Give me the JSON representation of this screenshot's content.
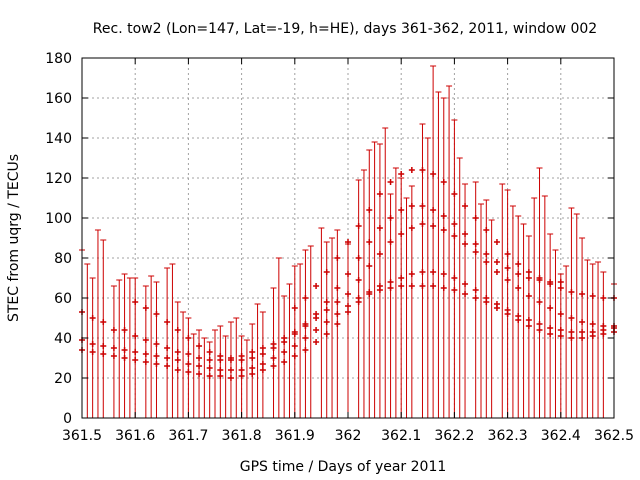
{
  "chart_data": {
    "type": "scatter",
    "title": "Rec. tow2 (Lon=147, Lat=-19, h=HE), days 361-362, 2011, window 002",
    "xlabel": "GPS time / Days of year 2011",
    "ylabel": "STEC from uqrg / TECUs",
    "xlim": [
      361.5,
      362.5
    ],
    "ylim": [
      0,
      180
    ],
    "xticks": [
      "361.5",
      "361.6",
      "361.7",
      "361.8",
      "361.9",
      "362",
      "362.1",
      "362.2",
      "362.3",
      "362.4",
      "362.5"
    ],
    "yticks": [
      "0",
      "20",
      "40",
      "60",
      "80",
      "100",
      "120",
      "140",
      "160",
      "180"
    ],
    "grid": true,
    "error_bars": "vertical bars from 0 to upper value at every x",
    "colors": {
      "series": "#cc0000",
      "grid": "#a0a0a0",
      "axis": "#000000"
    },
    "upper_envelope": [
      [
        361.5,
        84
      ],
      [
        361.51,
        77
      ],
      [
        361.52,
        70
      ],
      [
        361.53,
        94
      ],
      [
        361.54,
        89
      ],
      [
        361.56,
        66
      ],
      [
        361.57,
        69
      ],
      [
        361.58,
        72
      ],
      [
        361.59,
        70
      ],
      [
        361.6,
        70
      ],
      [
        361.62,
        66
      ],
      [
        361.63,
        71
      ],
      [
        361.64,
        68
      ],
      [
        361.66,
        75
      ],
      [
        361.67,
        77
      ],
      [
        361.68,
        58
      ],
      [
        361.69,
        53
      ],
      [
        361.7,
        50
      ],
      [
        361.71,
        42
      ],
      [
        361.72,
        44
      ],
      [
        361.73,
        40
      ],
      [
        361.74,
        38
      ],
      [
        361.75,
        44
      ],
      [
        361.76,
        46
      ],
      [
        361.77,
        41
      ],
      [
        361.78,
        48
      ],
      [
        361.79,
        50
      ],
      [
        361.8,
        41
      ],
      [
        361.81,
        39
      ],
      [
        361.82,
        47
      ],
      [
        361.83,
        57
      ],
      [
        361.84,
        53
      ],
      [
        361.86,
        65
      ],
      [
        361.87,
        80
      ],
      [
        361.88,
        61
      ],
      [
        361.89,
        67
      ],
      [
        361.9,
        76
      ],
      [
        361.91,
        77
      ],
      [
        361.92,
        84
      ],
      [
        361.93,
        86
      ],
      [
        361.95,
        95
      ],
      [
        361.96,
        88
      ],
      [
        361.97,
        90
      ],
      [
        361.98,
        94
      ],
      [
        362.0,
        87
      ],
      [
        362.02,
        119
      ],
      [
        362.03,
        124
      ],
      [
        362.04,
        134
      ],
      [
        362.05,
        138
      ],
      [
        362.06,
        137
      ],
      [
        362.07,
        145
      ],
      [
        362.08,
        112
      ],
      [
        362.09,
        125
      ],
      [
        362.1,
        120
      ],
      [
        362.11,
        110
      ],
      [
        362.12,
        116
      ],
      [
        362.14,
        147
      ],
      [
        362.15,
        140
      ],
      [
        362.16,
        176
      ],
      [
        362.17,
        163
      ],
      [
        362.18,
        160
      ],
      [
        362.19,
        166
      ],
      [
        362.2,
        149
      ],
      [
        362.21,
        130
      ],
      [
        362.22,
        117
      ],
      [
        362.24,
        118
      ],
      [
        362.25,
        107
      ],
      [
        362.26,
        109
      ],
      [
        362.27,
        99
      ],
      [
        362.29,
        117
      ],
      [
        362.3,
        114
      ],
      [
        362.31,
        106
      ],
      [
        362.32,
        101
      ],
      [
        362.33,
        97
      ],
      [
        362.34,
        91
      ],
      [
        362.35,
        110
      ],
      [
        362.36,
        125
      ],
      [
        362.37,
        111
      ],
      [
        362.38,
        92
      ],
      [
        362.39,
        84
      ],
      [
        362.4,
        72
      ],
      [
        362.41,
        76
      ],
      [
        362.42,
        105
      ],
      [
        362.43,
        102
      ],
      [
        362.44,
        90
      ],
      [
        362.45,
        79
      ],
      [
        362.46,
        77
      ],
      [
        362.47,
        78
      ],
      [
        362.48,
        73
      ],
      [
        362.5,
        67
      ]
    ],
    "series": [
      {
        "values": [
          [
            361.5,
            53
          ],
          [
            361.52,
            50
          ],
          [
            361.54,
            48
          ],
          [
            361.56,
            44
          ],
          [
            361.58,
            44
          ],
          [
            361.6,
            41
          ],
          [
            361.62,
            39
          ],
          [
            361.64,
            37
          ],
          [
            361.66,
            35
          ],
          [
            361.68,
            33
          ],
          [
            361.7,
            32
          ],
          [
            361.72,
            30
          ],
          [
            361.74,
            29
          ],
          [
            361.76,
            29
          ],
          [
            361.78,
            30
          ],
          [
            361.8,
            31
          ],
          [
            361.82,
            33
          ],
          [
            361.84,
            35
          ],
          [
            361.86,
            37
          ],
          [
            361.88,
            40
          ],
          [
            361.9,
            43
          ],
          [
            361.92,
            46
          ],
          [
            361.94,
            50
          ],
          [
            361.96,
            54
          ],
          [
            361.98,
            58
          ],
          [
            362.0,
            62
          ],
          [
            362.02,
            69
          ],
          [
            362.04,
            76
          ],
          [
            362.06,
            82
          ],
          [
            362.08,
            88
          ],
          [
            362.1,
            92
          ],
          [
            362.12,
            95
          ],
          [
            362.14,
            97
          ],
          [
            362.16,
            96
          ],
          [
            362.18,
            94
          ],
          [
            362.2,
            91
          ],
          [
            362.22,
            87
          ],
          [
            362.24,
            83
          ],
          [
            362.26,
            78
          ],
          [
            362.28,
            73
          ],
          [
            362.3,
            69
          ],
          [
            362.32,
            65
          ],
          [
            362.34,
            61
          ],
          [
            362.36,
            58
          ],
          [
            362.38,
            55
          ],
          [
            362.4,
            52
          ],
          [
            362.42,
            50
          ],
          [
            362.44,
            48
          ],
          [
            362.46,
            47
          ],
          [
            362.48,
            46
          ],
          [
            362.5,
            46
          ]
        ]
      },
      {
        "values": [
          [
            361.5,
            39
          ],
          [
            361.52,
            37
          ],
          [
            361.54,
            36
          ],
          [
            361.56,
            35
          ],
          [
            361.58,
            34
          ],
          [
            361.6,
            33
          ],
          [
            361.62,
            32
          ],
          [
            361.64,
            31
          ],
          [
            361.66,
            30
          ],
          [
            361.68,
            29
          ],
          [
            361.7,
            27
          ],
          [
            361.72,
            26
          ],
          [
            361.74,
            25
          ],
          [
            361.76,
            24
          ],
          [
            361.78,
            24
          ],
          [
            361.8,
            24
          ],
          [
            361.82,
            25
          ],
          [
            361.84,
            27
          ],
          [
            361.86,
            30
          ],
          [
            361.88,
            33
          ],
          [
            361.9,
            36
          ],
          [
            361.92,
            40
          ],
          [
            361.94,
            44
          ],
          [
            361.96,
            48
          ],
          [
            361.98,
            52
          ],
          [
            362.0,
            56
          ],
          [
            362.02,
            60
          ],
          [
            362.04,
            63
          ],
          [
            362.06,
            66
          ],
          [
            362.08,
            68
          ],
          [
            362.1,
            70
          ],
          [
            362.12,
            72
          ],
          [
            362.14,
            73
          ],
          [
            362.16,
            73
          ],
          [
            362.18,
            72
          ],
          [
            362.2,
            70
          ],
          [
            362.22,
            67
          ],
          [
            362.24,
            64
          ],
          [
            362.26,
            60
          ],
          [
            362.28,
            57
          ],
          [
            362.3,
            54
          ],
          [
            362.32,
            51
          ],
          [
            362.34,
            49
          ],
          [
            362.36,
            47
          ],
          [
            362.38,
            45
          ],
          [
            362.4,
            44
          ],
          [
            362.42,
            43
          ],
          [
            362.44,
            43
          ],
          [
            362.46,
            43
          ],
          [
            362.48,
            44
          ],
          [
            362.5,
            45
          ]
        ]
      },
      {
        "values": [
          [
            361.6,
            58
          ],
          [
            361.62,
            55
          ],
          [
            361.64,
            52
          ],
          [
            361.66,
            48
          ],
          [
            361.68,
            44
          ],
          [
            361.7,
            40
          ],
          [
            361.72,
            36
          ],
          [
            361.74,
            33
          ],
          [
            361.76,
            31
          ],
          [
            361.78,
            29
          ],
          [
            361.8,
            29
          ],
          [
            361.82,
            30
          ],
          [
            361.84,
            32
          ],
          [
            361.86,
            35
          ],
          [
            361.88,
            38
          ],
          [
            361.9,
            42
          ],
          [
            361.92,
            47
          ],
          [
            361.94,
            52
          ],
          [
            361.96,
            58
          ],
          [
            361.98,
            65
          ],
          [
            362.0,
            72
          ],
          [
            362.02,
            80
          ],
          [
            362.04,
            88
          ],
          [
            362.06,
            95
          ],
          [
            362.08,
            100
          ],
          [
            362.1,
            104
          ],
          [
            362.12,
            106
          ],
          [
            362.14,
            106
          ],
          [
            362.16,
            104
          ],
          [
            362.18,
            101
          ],
          [
            362.2,
            97
          ],
          [
            362.22,
            92
          ],
          [
            362.24,
            87
          ],
          [
            362.26,
            82
          ],
          [
            362.28,
            78
          ],
          [
            362.3,
            75
          ],
          [
            362.32,
            72
          ],
          [
            362.34,
            70
          ],
          [
            362.36,
            69
          ],
          [
            362.38,
            68
          ],
          [
            362.4,
            68
          ]
        ]
      },
      {
        "values": [
          [
            361.5,
            34
          ],
          [
            361.52,
            33
          ],
          [
            361.54,
            32
          ],
          [
            361.56,
            31
          ],
          [
            361.58,
            30
          ],
          [
            361.6,
            29
          ],
          [
            361.62,
            28
          ],
          [
            361.64,
            27
          ],
          [
            361.66,
            26
          ],
          [
            361.68,
            24
          ],
          [
            361.7,
            23
          ],
          [
            361.72,
            22
          ],
          [
            361.74,
            21
          ],
          [
            361.76,
            21
          ],
          [
            361.78,
            20
          ],
          [
            361.8,
            21
          ],
          [
            361.82,
            22
          ],
          [
            361.84,
            24
          ],
          [
            361.86,
            26
          ],
          [
            361.88,
            28
          ],
          [
            361.9,
            31
          ],
          [
            361.92,
            34
          ],
          [
            361.94,
            38
          ],
          [
            361.96,
            42
          ],
          [
            361.98,
            47
          ],
          [
            362.0,
            53
          ],
          [
            362.02,
            58
          ],
          [
            362.04,
            62
          ],
          [
            362.06,
            64
          ],
          [
            362.08,
            65
          ],
          [
            362.1,
            66
          ],
          [
            362.12,
            66
          ],
          [
            362.14,
            66
          ],
          [
            362.16,
            66
          ],
          [
            362.18,
            65
          ],
          [
            362.2,
            64
          ],
          [
            362.22,
            62
          ],
          [
            362.24,
            60
          ],
          [
            362.26,
            58
          ],
          [
            362.28,
            55
          ],
          [
            362.3,
            52
          ],
          [
            362.32,
            49
          ],
          [
            362.34,
            46
          ],
          [
            362.36,
            44
          ],
          [
            362.38,
            42
          ],
          [
            362.4,
            41
          ],
          [
            362.42,
            40
          ],
          [
            362.44,
            40
          ],
          [
            362.46,
            41
          ],
          [
            362.48,
            42
          ],
          [
            362.5,
            43
          ]
        ]
      },
      {
        "values": [
          [
            361.9,
            55
          ],
          [
            361.92,
            60
          ],
          [
            361.94,
            66
          ],
          [
            361.96,
            73
          ],
          [
            361.98,
            80
          ],
          [
            362.0,
            88
          ],
          [
            362.02,
            96
          ],
          [
            362.04,
            104
          ],
          [
            362.06,
            112
          ],
          [
            362.08,
            118
          ],
          [
            362.1,
            122
          ],
          [
            362.12,
            124
          ],
          [
            362.14,
            124
          ],
          [
            362.16,
            122
          ],
          [
            362.18,
            118
          ],
          [
            362.2,
            112
          ],
          [
            362.22,
            106
          ],
          [
            362.24,
            100
          ],
          [
            362.26,
            94
          ],
          [
            362.28,
            88
          ],
          [
            362.3,
            82
          ],
          [
            362.32,
            77
          ],
          [
            362.34,
            73
          ],
          [
            362.36,
            70
          ],
          [
            362.38,
            67
          ],
          [
            362.4,
            65
          ],
          [
            362.42,
            63
          ],
          [
            362.44,
            62
          ],
          [
            362.46,
            61
          ],
          [
            362.48,
            60
          ],
          [
            362.5,
            60
          ]
        ]
      }
    ]
  }
}
